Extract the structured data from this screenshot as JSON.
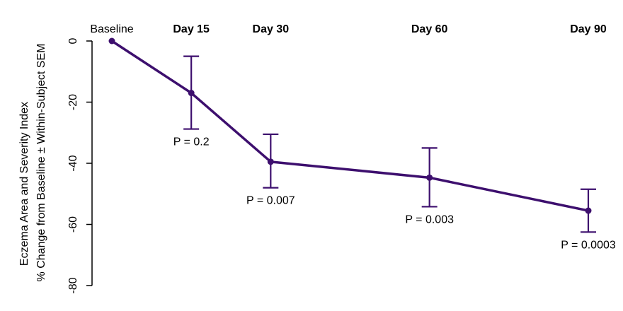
{
  "chart_data": {
    "type": "line",
    "categories": [
      "Baseline",
      "Day 15",
      "Day 30",
      "Day 60",
      "Day 90"
    ],
    "x": [
      0,
      15,
      30,
      60,
      90
    ],
    "values": [
      0,
      -17,
      -39.5,
      -44.7,
      -55.5
    ],
    "error_low": [
      0,
      -28.8,
      -48,
      -54.2,
      -62.5
    ],
    "error_high": [
      0,
      -5,
      -30.5,
      -35,
      -48.5
    ],
    "p_values": [
      "",
      "P = 0.2",
      "P = 0.007",
      "P = 0.003",
      "P = 0.0003"
    ],
    "ylabel_line1": "Eczema Area and Severity Index",
    "ylabel_line2": "% Change from Baseline ± Within-Subject SEM",
    "ylim": [
      -80,
      0
    ],
    "yticks": [
      0,
      -20,
      -40,
      -60,
      -80
    ],
    "ytick_labels": [
      "0",
      "-20",
      "-40",
      "-60",
      "-80"
    ],
    "grid": false,
    "color": "#3d0f6e"
  }
}
